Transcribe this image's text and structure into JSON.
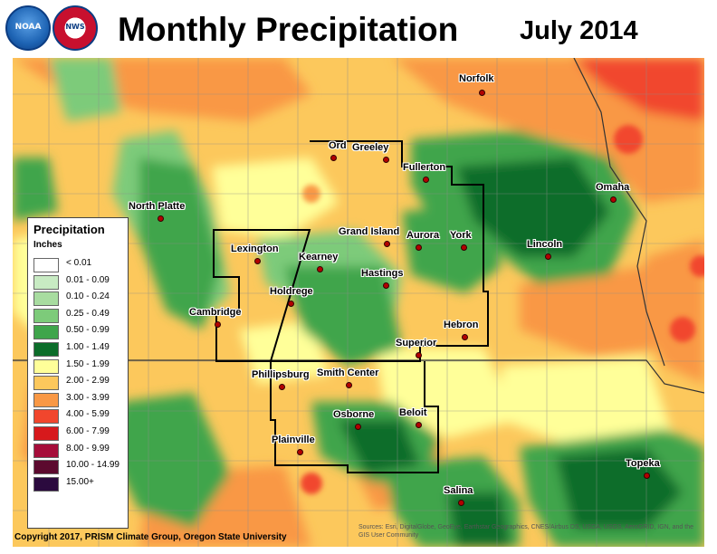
{
  "header": {
    "logos": [
      {
        "name": "noaa",
        "text": "NOAA",
        "color": "#1e64b4"
      },
      {
        "name": "nws",
        "text": "NWS",
        "color": "#c8102e"
      }
    ],
    "title": "Monthly Precipitation",
    "date": "July 2014"
  },
  "map": {
    "region": "Nebraska and Kansas",
    "cities": [
      {
        "name": "Norfolk"
      },
      {
        "name": "Ord"
      },
      {
        "name": "Greeley"
      },
      {
        "name": "Fullerton"
      },
      {
        "name": "Omaha"
      },
      {
        "name": "North Platte"
      },
      {
        "name": "Grand Island"
      },
      {
        "name": "Aurora"
      },
      {
        "name": "York"
      },
      {
        "name": "Lincoln"
      },
      {
        "name": "Lexington"
      },
      {
        "name": "Kearney"
      },
      {
        "name": "Hastings"
      },
      {
        "name": "Holdrege"
      },
      {
        "name": "Cambridge"
      },
      {
        "name": "Hebron"
      },
      {
        "name": "Superior"
      },
      {
        "name": "Phillipsburg"
      },
      {
        "name": "Smith Center"
      },
      {
        "name": "Osborne"
      },
      {
        "name": "Beloit"
      },
      {
        "name": "Plainville"
      },
      {
        "name": "Salina"
      },
      {
        "name": "Topeka"
      }
    ]
  },
  "legend": {
    "title": "Precipitation",
    "units": "Inches",
    "items": [
      {
        "label": "< 0.01",
        "color": "#ffffff"
      },
      {
        "label": "0.01 - 0.09",
        "color": "#c8ebc3"
      },
      {
        "label": "0.10 - 0.24",
        "color": "#a8dca0"
      },
      {
        "label": "0.25 - 0.49",
        "color": "#7dcb7a"
      },
      {
        "label": "0.50 - 0.99",
        "color": "#3fa54b"
      },
      {
        "label": "1.00 - 1.49",
        "color": "#0c6d2a"
      },
      {
        "label": "1.50 - 1.99",
        "color": "#ffff99"
      },
      {
        "label": "2.00 - 2.99",
        "color": "#fcc85c"
      },
      {
        "label": "3.00 - 3.99",
        "color": "#f99845"
      },
      {
        "label": "4.00 - 5.99",
        "color": "#f1462d"
      },
      {
        "label": "6.00 - 7.99",
        "color": "#d7191c"
      },
      {
        "label": "8.00 - 9.99",
        "color": "#a60d3a"
      },
      {
        "label": "10.00 - 14.99",
        "color": "#5c0a2e"
      },
      {
        "label": "15.00+",
        "color": "#2b0a3e"
      }
    ]
  },
  "footer": {
    "copyright": "Copyright 2017, PRISM Climate Group, Oregon State University",
    "sources": "Sources: Esri, DigitalGlobe, GeoEye, Earthstar Geographics, CNES/Airbus DS, USDA, USGS, AeroGRID, IGN, and the GIS User Community"
  }
}
